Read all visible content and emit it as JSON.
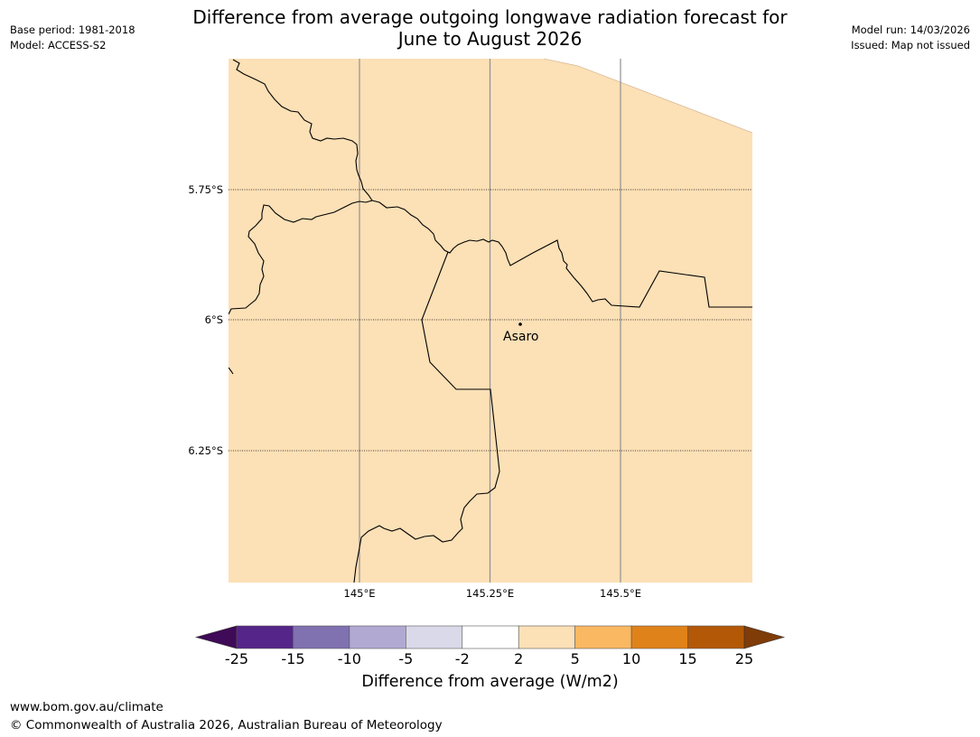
{
  "header": {
    "title_line1": "Difference from average outgoing longwave radiation forecast for",
    "title_line2": "June to August 2026",
    "base_period": "Base period: 1981-2018",
    "model": "Model: ACCESS-S2",
    "model_run": "Model run: 14/03/2026",
    "issued": "Issued: Map not issued"
  },
  "map": {
    "land_color": "#fce0b6",
    "latitude_labels": [
      "5.75°S",
      "6°S",
      "6.25°S"
    ],
    "longitude_labels": [
      "145°E",
      "145.25°E",
      "145.5°E"
    ],
    "place": {
      "name": "Asaro"
    }
  },
  "colorbar": {
    "label": "Difference from average (W/m2)",
    "ticks": [
      "-25",
      "-15",
      "-10",
      "-5",
      "-2",
      "2",
      "5",
      "10",
      "15",
      "25"
    ],
    "colors": [
      "#3f0a57",
      "#552589",
      "#8071b1",
      "#b1a9d2",
      "#d9d9ea",
      "#ffffff",
      "#fce0b6",
      "#fab862",
      "#e0821a",
      "#b35806",
      "#7f3b08"
    ]
  },
  "footer": {
    "url": "www.bom.gov.au/climate",
    "copyright": "© Commonwealth of Australia 2026, Australian Bureau of Meteorology"
  }
}
